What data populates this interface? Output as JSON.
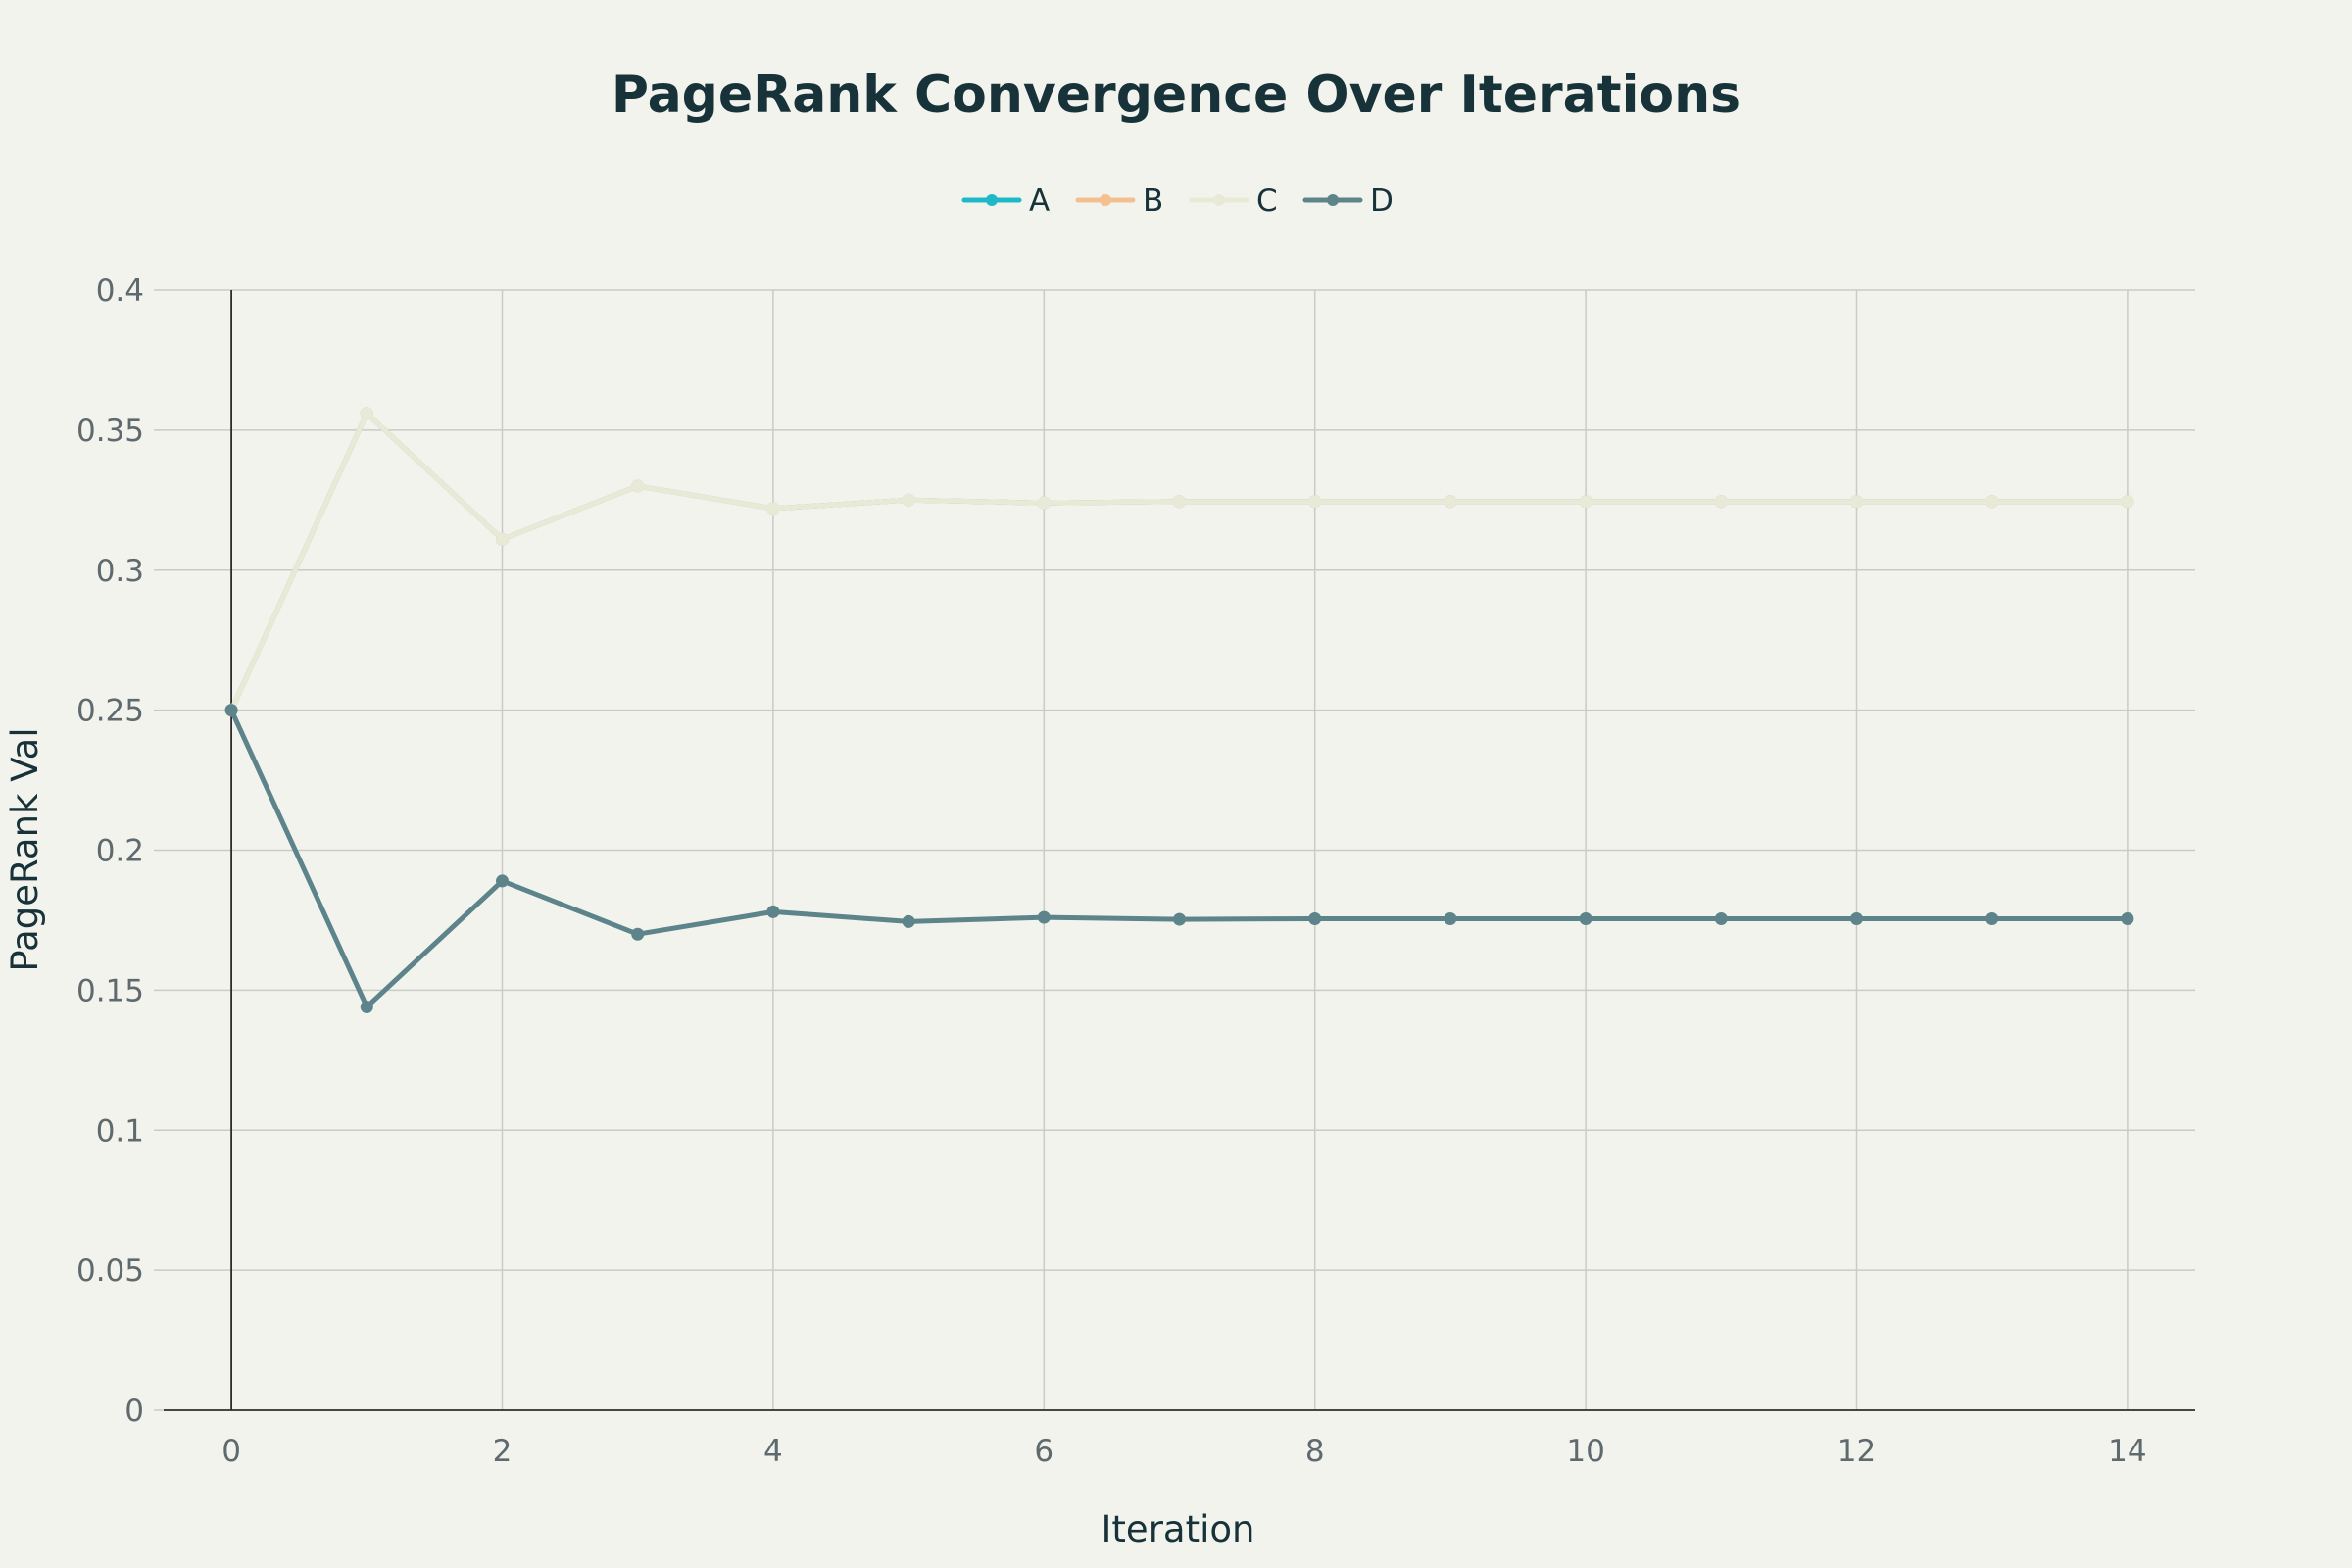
{
  "chart_data": {
    "type": "line",
    "title": "PageRank Convergence Over Iterations",
    "xlabel": "Iteration",
    "ylabel": "PageRank Val",
    "xlim": [
      -0.5,
      14.5
    ],
    "ylim": [
      0,
      0.4
    ],
    "x_ticks": [
      0,
      2,
      4,
      6,
      8,
      10,
      12,
      14
    ],
    "x_tick_labels": [
      "0",
      "2",
      "4",
      "6",
      "8",
      "10",
      "12",
      "14"
    ],
    "y_ticks": [
      0,
      0.05,
      0.1,
      0.15,
      0.2,
      0.25,
      0.3,
      0.35,
      0.4
    ],
    "y_tick_labels": [
      "0",
      "0.05",
      "0.1",
      "0.15",
      "0.2",
      "0.25",
      "0.3",
      "0.35",
      "0.4"
    ],
    "grid": true,
    "legend_position": "top-center",
    "x": [
      0,
      1,
      2,
      3,
      4,
      5,
      6,
      7,
      8,
      9,
      10,
      11,
      12,
      13,
      14
    ],
    "series": [
      {
        "name": "A",
        "color": "#1fb8c9",
        "values": [
          0.25,
          0.356,
          0.311,
          0.33,
          0.322,
          0.325,
          0.324,
          0.3245,
          0.3245,
          0.3245,
          0.3245,
          0.3245,
          0.3245,
          0.3245,
          0.3245
        ]
      },
      {
        "name": "B",
        "color": "#f5c08f",
        "values": [
          0.25,
          0.356,
          0.311,
          0.33,
          0.322,
          0.325,
          0.324,
          0.3245,
          0.3245,
          0.3245,
          0.3245,
          0.3245,
          0.3245,
          0.3245,
          0.3245
        ]
      },
      {
        "name": "C",
        "color": "#e8ead7",
        "values": [
          0.25,
          0.356,
          0.311,
          0.33,
          0.322,
          0.325,
          0.324,
          0.3245,
          0.3245,
          0.3245,
          0.3245,
          0.3245,
          0.3245,
          0.3245,
          0.3245
        ]
      },
      {
        "name": "D",
        "color": "#5d848a",
        "values": [
          0.25,
          0.144,
          0.189,
          0.17,
          0.178,
          0.1745,
          0.176,
          0.1753,
          0.1755,
          0.1755,
          0.1755,
          0.1755,
          0.1755,
          0.1755,
          0.1755
        ]
      }
    ]
  }
}
